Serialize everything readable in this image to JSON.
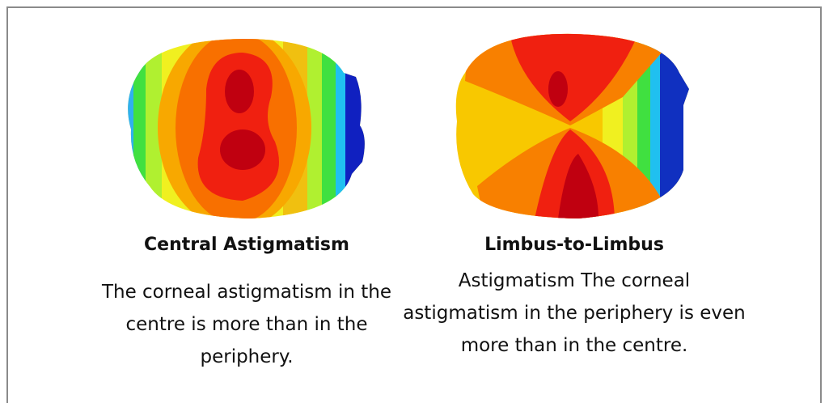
{
  "panels": [
    {
      "title": "Central Astigmatism",
      "description": "The corneal astigmatism in the centre is more than in the periphery."
    },
    {
      "title": "Limbus-to-Limbus",
      "description": "Astigmatism The corneal astigmatism in the periphery is even more than in the centre."
    }
  ]
}
